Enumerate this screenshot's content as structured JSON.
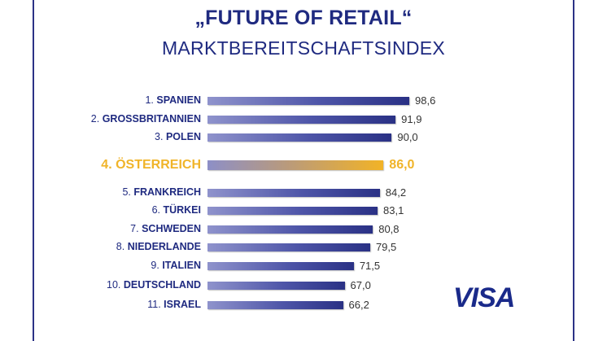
{
  "chart_data": {
    "type": "bar",
    "title": "„FUTURE OF RETAIL“",
    "subtitle": "MARKTBEREITSCHAFTSINDEX",
    "categories": [
      "1. SPANIEN",
      "2. GROSSBRITANNIEN",
      "3. POLEN",
      "4. ÖSTERREICH",
      "5. FRANKREICH",
      "6. TÜRKEI",
      "7. SCHWEDEN",
      "8. NIEDERLANDE",
      "9. ITALIEN",
      "10. DEUTSCHLAND",
      "11. ISRAEL"
    ],
    "ranks": [
      "1.",
      "2.",
      "3.",
      "4.",
      "5.",
      "6.",
      "7.",
      "8.",
      "9.",
      "10.",
      "11."
    ],
    "countries": [
      "SPANIEN",
      "GROSSBRITANNIEN",
      "POLEN",
      "ÖSTERREICH",
      "FRANKREICH",
      "TÜRKEI",
      "SCHWEDEN",
      "NIEDERLANDE",
      "ITALIEN",
      "DEUTSCHLAND",
      "ISRAEL"
    ],
    "values": [
      98.6,
      91.9,
      90.0,
      86.0,
      84.2,
      83.1,
      80.8,
      79.5,
      71.5,
      67.0,
      66.2
    ],
    "value_labels": [
      "98,6",
      "91,9",
      "90,0",
      "86,0",
      "84,2",
      "83,1",
      "80,8",
      "79,5",
      "71,5",
      "67,0",
      "66,2"
    ],
    "highlight_index": 3,
    "colors": {
      "bar": "#2a3185",
      "highlight": "#f2b326",
      "title": "#1f2a80"
    }
  },
  "logo": "VISA"
}
